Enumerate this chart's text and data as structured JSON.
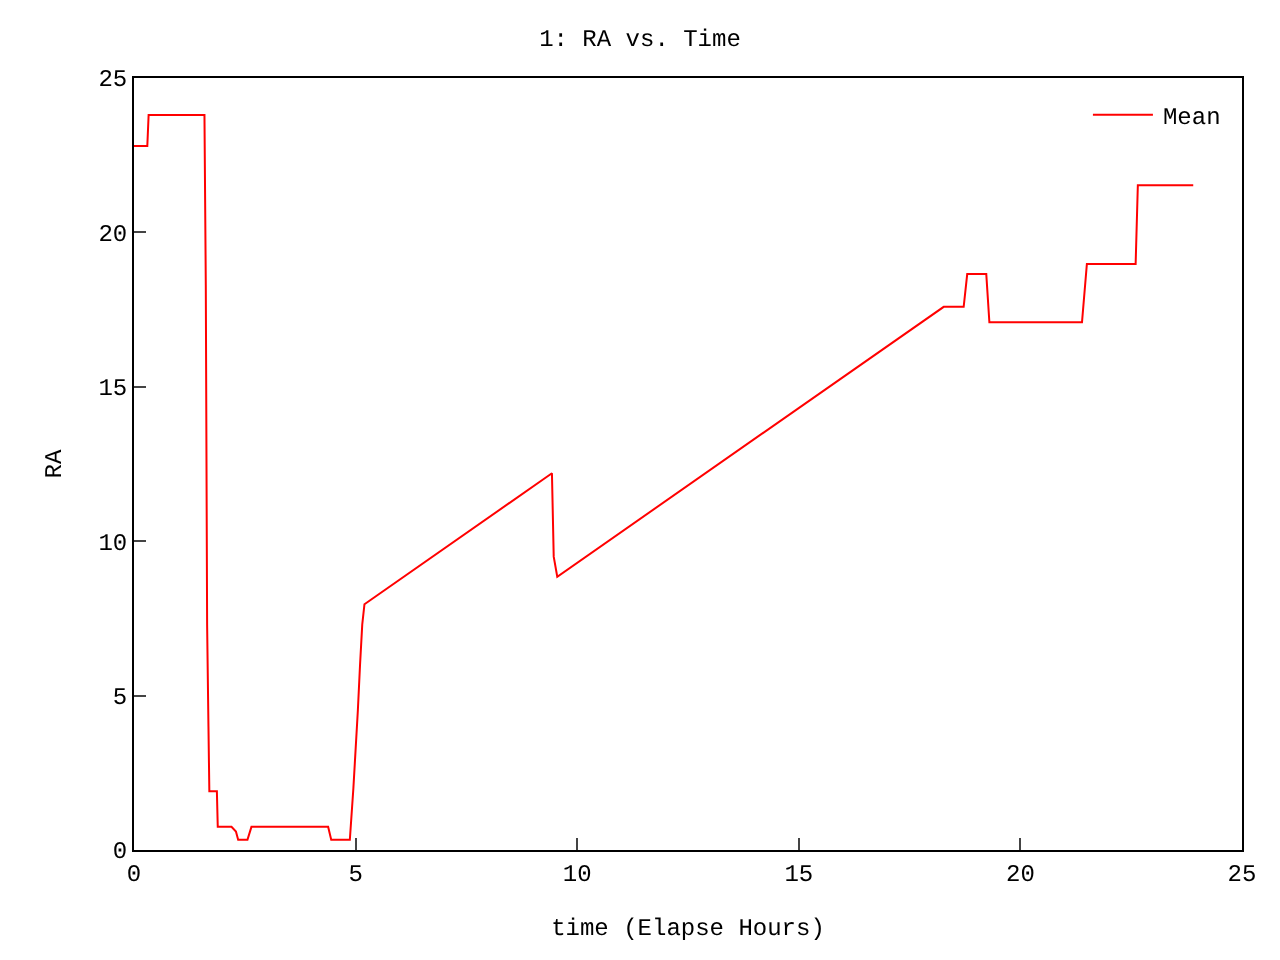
{
  "chart_data": {
    "type": "line",
    "title": "1: RA vs. Time",
    "xlabel": "time (Elapse Hours)",
    "ylabel": "RA",
    "series": [
      {
        "name": "Mean",
        "color": "#ff0000",
        "x": [
          0,
          0.3,
          0.33,
          1.59,
          1.62,
          1.65,
          1.68,
          1.7,
          1.87,
          1.89,
          2.2,
          2.3,
          2.35,
          2.56,
          2.65,
          4.38,
          4.45,
          4.87,
          4.95,
          5.05,
          5.1,
          5.15,
          5.2,
          9.43,
          9.47,
          9.55,
          18.27,
          18.72,
          18.8,
          19.23,
          19.3,
          21.39,
          21.5,
          22.6,
          22.65,
          23.9
        ],
        "values": [
          22.8,
          22.8,
          23.8,
          23.8,
          18.3,
          7.3,
          4,
          1.9,
          1.9,
          0.75,
          0.75,
          0.6,
          0.33,
          0.33,
          0.75,
          0.75,
          0.33,
          0.33,
          2,
          4.5,
          6,
          7.3,
          7.96,
          12.2,
          9.5,
          8.85,
          17.59,
          17.59,
          18.65,
          18.65,
          17.09,
          17.09,
          18.98,
          18.98,
          21.53,
          21.53
        ]
      }
    ],
    "xlim": [
      0,
      25
    ],
    "ylim": [
      0,
      25
    ],
    "xticks": [
      0,
      5,
      10,
      15,
      20,
      25
    ],
    "yticks": [
      0,
      5,
      10,
      15,
      20,
      25
    ],
    "legend": "top right",
    "marker": "none",
    "line_style": "solid"
  }
}
